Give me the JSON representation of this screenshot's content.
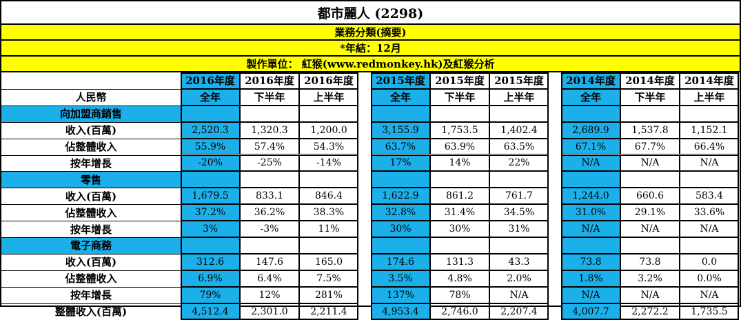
{
  "title": "都市麗人 (2298)",
  "subtitle": "業務分類(摘要)",
  "year_end": "*年結：12月",
  "credit": "製作單位： 紅猴(www.redmonkey.hk)及紅猴分析",
  "currency_label": "人民幣",
  "groups": [
    {
      "year": "2016年度",
      "cols": [
        "全年",
        "下半年",
        "上半年"
      ]
    },
    {
      "year": "2015年度",
      "cols": [
        "全年",
        "下半年",
        "上半年"
      ]
    },
    {
      "year": "2014年度",
      "cols": [
        "全年",
        "下半年",
        "上半年"
      ]
    }
  ],
  "sections": [
    {
      "name": "向加盟商銷售",
      "rows": [
        {
          "label": "收入(百萬)",
          "values": [
            "2,520.3",
            "1,320.3",
            "1,200.0",
            "3,155.9",
            "1,753.5",
            "1,402.4",
            "2,689.9",
            "1,537.8",
            "1,152.1"
          ]
        },
        {
          "label": "佔整體收入",
          "values": [
            "55.9%",
            "57.4%",
            "54.3%",
            "63.7%",
            "63.9%",
            "63.5%",
            "67.1%",
            "67.7%",
            "66.4%"
          ]
        },
        {
          "label": "按年增長",
          "values": [
            "-20%",
            "-25%",
            "-14%",
            "17%",
            "14%",
            "22%",
            "N/A",
            "N/A",
            "N/A"
          ]
        }
      ]
    },
    {
      "name": "零售",
      "rows": [
        {
          "label": "收入(百萬)",
          "values": [
            "1,679.5",
            "833.1",
            "846.4",
            "1,622.9",
            "861.2",
            "761.7",
            "1,244.0",
            "660.6",
            "583.4"
          ]
        },
        {
          "label": "佔整體收入",
          "values": [
            "37.2%",
            "36.2%",
            "38.3%",
            "32.8%",
            "31.4%",
            "34.5%",
            "31.0%",
            "29.1%",
            "33.6%"
          ]
        },
        {
          "label": "按年增長",
          "values": [
            "3%",
            "-3%",
            "11%",
            "30%",
            "30%",
            "31%",
            "N/A",
            "N/A",
            "N/A"
          ]
        }
      ]
    },
    {
      "name": "電子商務",
      "rows": [
        {
          "label": "收入(百萬)",
          "values": [
            "312.6",
            "147.6",
            "165.0",
            "174.6",
            "131.3",
            "43.3",
            "73.8",
            "73.8",
            "0.0"
          ]
        },
        {
          "label": "佔整體收入",
          "values": [
            "6.9%",
            "6.4%",
            "7.5%",
            "3.5%",
            "4.8%",
            "2.0%",
            "1.8%",
            "3.2%",
            "0.0%"
          ]
        },
        {
          "label": "按年增長",
          "values": [
            "79%",
            "12%",
            "281%",
            "137%",
            "78%",
            "N/A",
            "N/A",
            "N/A",
            "N/A"
          ]
        }
      ]
    }
  ],
  "total": {
    "label": "整體收入(百萬)",
    "values": [
      "4,512.4",
      "2,301.0",
      "2,211.4",
      "4,953.4",
      "2,746.0",
      "2,207.4",
      "4,007.7",
      "2,272.2",
      "1,735.5"
    ]
  },
  "colors": {
    "accent_blue": "#1bb0ea",
    "band_yellow": "#ffff00"
  }
}
